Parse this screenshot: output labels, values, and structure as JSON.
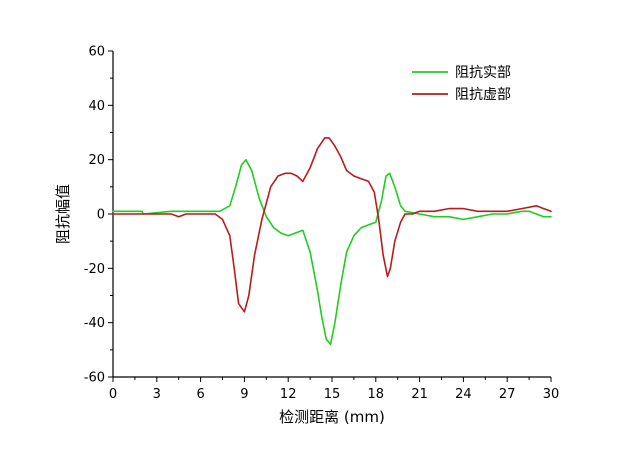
{
  "chart_data": {
    "type": "line",
    "xlabel": "检测距离 (mm)",
    "ylabel": "阻抗幅值",
    "xlim": [
      0,
      30
    ],
    "ylim": [
      -60,
      60
    ],
    "xticks": [
      0,
      3,
      6,
      9,
      12,
      15,
      18,
      21,
      24,
      27,
      30
    ],
    "yticks": [
      -60,
      -40,
      -20,
      0,
      20,
      40,
      60
    ],
    "grid": false,
    "legend_position": "top-right",
    "series": [
      {
        "name": "阻抗实部",
        "color": "#22cc22",
        "x": [
          0,
          2,
          2.05,
          4,
          6,
          7.3,
          8,
          8.4,
          8.8,
          9.1,
          9.5,
          10,
          10.5,
          11,
          11.5,
          12,
          12.5,
          13,
          13.5,
          14,
          14.3,
          14.6,
          14.9,
          15.2,
          15.6,
          16,
          16.5,
          17,
          17.5,
          18,
          18.4,
          18.7,
          18.95,
          19.3,
          19.7,
          20,
          21,
          22,
          23,
          24,
          25,
          26,
          27,
          28,
          28.5,
          29,
          29.5,
          30
        ],
        "y": [
          1,
          1,
          0,
          1,
          1,
          1,
          3,
          10,
          18,
          20,
          16,
          6,
          -1,
          -5,
          -7,
          -8,
          -7,
          -6,
          -14,
          -28,
          -38,
          -46,
          -48,
          -40,
          -26,
          -14,
          -8,
          -5,
          -4,
          -3,
          5,
          14,
          15,
          10,
          3,
          1,
          0,
          -1,
          -1,
          -2,
          -1,
          0,
          0,
          1,
          1,
          0,
          -1,
          -1
        ]
      },
      {
        "name": "阻抗虚部",
        "color": "#b71c1c",
        "x": [
          0,
          4,
          4.5,
          5,
          7,
          7.5,
          8,
          8.3,
          8.6,
          9,
          9.3,
          9.7,
          10.2,
          10.8,
          11.3,
          11.8,
          12.2,
          12.6,
          13,
          13.5,
          14,
          14.5,
          14.8,
          15.2,
          15.6,
          16,
          16.5,
          17,
          17.5,
          17.9,
          18.2,
          18.5,
          18.8,
          19,
          19.3,
          19.7,
          20,
          20.5,
          21,
          22,
          23,
          24,
          25,
          26,
          27,
          28,
          29,
          29.5,
          30
        ],
        "y": [
          0,
          0,
          -1,
          0,
          0,
          -2,
          -8,
          -20,
          -33,
          -36,
          -30,
          -15,
          -2,
          10,
          14,
          15,
          15,
          14,
          12,
          17,
          24,
          28,
          28,
          25,
          21,
          16,
          14,
          13,
          12,
          8,
          -2,
          -15,
          -23,
          -20,
          -10,
          -3,
          0,
          0,
          1,
          1,
          2,
          2,
          1,
          1,
          1,
          2,
          3,
          2,
          1
        ]
      }
    ]
  }
}
